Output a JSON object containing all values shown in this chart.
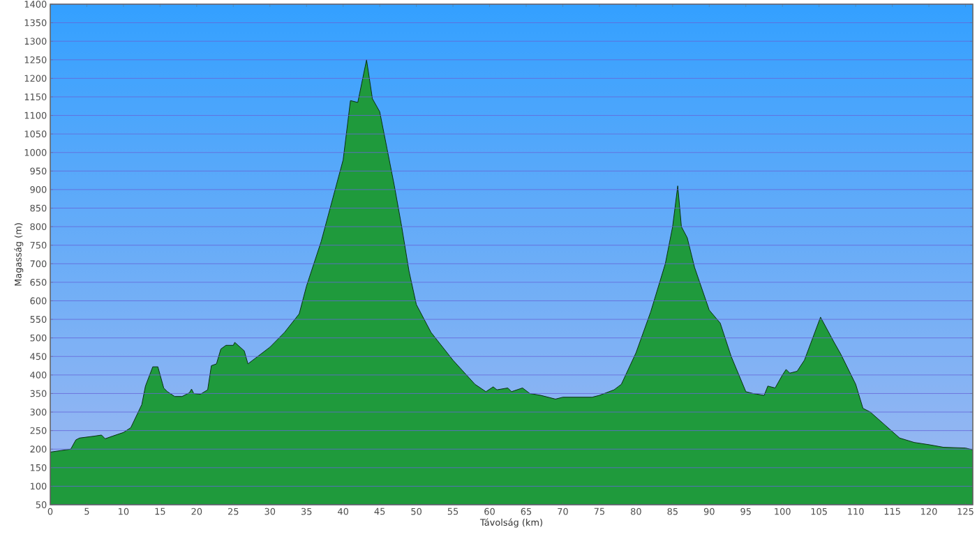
{
  "chart_data": {
    "type": "area",
    "xlabel": "Távolság   (km)",
    "ylabel": "Magasság (m)",
    "x": [
      0,
      2.8,
      3.5,
      4,
      6,
      7,
      7.5,
      8.5,
      10,
      11,
      12.5,
      13,
      14,
      14.7,
      15.5,
      16,
      17,
      18,
      19,
      19.3,
      19.6,
      20.5,
      21.5,
      22,
      22.7,
      23.3,
      24,
      25,
      25.2,
      26.5,
      27,
      28,
      30,
      32,
      34,
      35,
      37,
      40,
      41,
      42,
      43.2,
      44,
      45,
      46,
      47,
      48,
      49,
      50,
      52,
      55,
      58,
      59.5,
      60.5,
      61,
      62.5,
      63,
      64.5,
      65.5,
      67,
      69,
      70,
      72,
      74,
      75,
      77,
      78,
      80,
      82,
      84,
      85,
      85.7,
      86.2,
      87,
      88,
      90,
      91.5,
      93,
      95,
      96,
      97.5,
      98,
      99,
      100,
      100.5,
      101,
      102,
      103,
      105.2,
      107,
      108,
      110,
      111,
      112,
      114,
      116,
      118,
      120,
      122,
      125,
      126
    ],
    "values": [
      192,
      200,
      225,
      230,
      235,
      238,
      228,
      235,
      245,
      258,
      320,
      370,
      422,
      422,
      365,
      355,
      342,
      342,
      352,
      362,
      350,
      348,
      360,
      425,
      430,
      470,
      480,
      480,
      488,
      465,
      430,
      445,
      475,
      515,
      565,
      640,
      760,
      980,
      1140,
      1135,
      1250,
      1145,
      1110,
      1010,
      910,
      800,
      680,
      590,
      515,
      440,
      375,
      355,
      368,
      360,
      365,
      355,
      365,
      350,
      345,
      335,
      340,
      340,
      340,
      345,
      360,
      375,
      460,
      570,
      700,
      800,
      910,
      800,
      770,
      690,
      575,
      540,
      450,
      355,
      350,
      345,
      370,
      365,
      400,
      415,
      405,
      410,
      440,
      556,
      490,
      455,
      375,
      310,
      300,
      265,
      230,
      218,
      212,
      205,
      203,
      198
    ],
    "color": "#1f9a3c",
    "xlim": [
      0,
      126
    ],
    "ylim": [
      50,
      1400
    ],
    "xticks": [
      0,
      5,
      10,
      15,
      20,
      25,
      30,
      35,
      40,
      45,
      50,
      55,
      60,
      65,
      70,
      75,
      80,
      85,
      90,
      95,
      100,
      105,
      110,
      115,
      120,
      125
    ],
    "yticks": [
      50,
      100,
      150,
      200,
      250,
      300,
      350,
      400,
      450,
      500,
      550,
      600,
      650,
      700,
      750,
      800,
      850,
      900,
      950,
      1000,
      1050,
      1100,
      1150,
      1200,
      1250,
      1300,
      1350,
      1400
    ],
    "grid": "y"
  }
}
